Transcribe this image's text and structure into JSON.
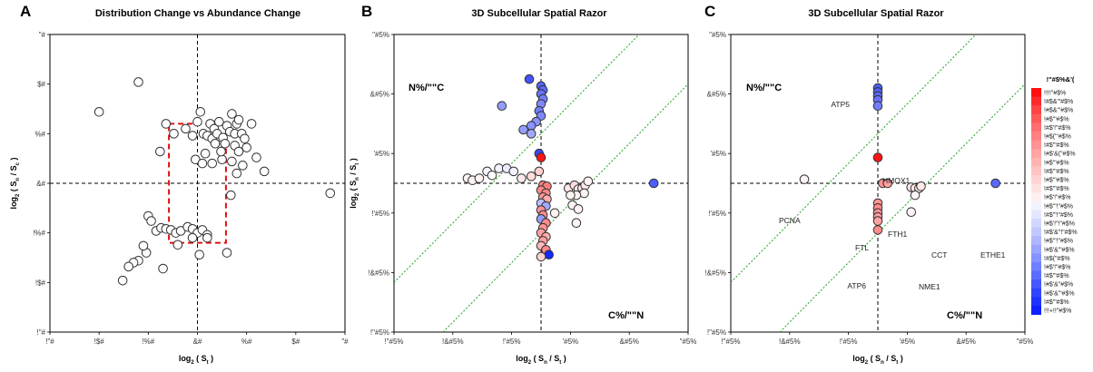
{
  "panels": [
    {
      "label": "A",
      "title": "Distribution Change vs  Abundance Change",
      "xlabel_main": "log",
      "xlabel_sub": "2",
      "xlabel_rest": " ( S",
      "xlabel_sub2": "t",
      "xlabel_end": " )",
      "ylabel_main": "log",
      "ylabel_sub": "2",
      "ylabel_rest": " ( S",
      "ylabel_sub2": "n",
      "ylabel_mid": " / S",
      "ylabel_sub3": "c",
      "ylabel_end": " )",
      "x_ticks": [
        "!\"#",
        "!$#",
        "!%#",
        "&#",
        "%#",
        "$#",
        "\"#"
      ],
      "y_ticks": [
        "\"#",
        "$#",
        "%#",
        "&#",
        "!%#",
        "!$#",
        "!\"#"
      ]
    },
    {
      "label": "B",
      "title": "3D Subcellular Spatial Razor",
      "xlabel_main": "log",
      "xlabel_sub": "2",
      "xlabel_rest": " ( S",
      "xlabel_sub2": "n",
      "xlabel_mid": " / S",
      "xlabel_sub3": "t",
      "xlabel_end": " )",
      "ylabel_main": "log",
      "ylabel_sub": "2",
      "ylabel_rest": " ( S",
      "ylabel_sub2": "n",
      "ylabel_mid": " / S",
      "ylabel_sub3": "t",
      "ylabel_end": " )",
      "x_ticks": [
        "!\"#5%",
        "!&#5%",
        "!'#5%",
        "'#5%",
        "&#5%",
        "\"#5%"
      ],
      "y_ticks": [
        "\"#5%",
        "&#5%",
        "'#5%",
        "!'#5%",
        "!&#5%",
        "!\"#5%"
      ],
      "corner_tl": "N%/\"\"C",
      "corner_br": "C%/\"\"N"
    },
    {
      "label": "C",
      "title": "3D Subcellular Spatial Razor",
      "xlabel_main": "log",
      "xlabel_sub": "2",
      "xlabel_rest": " ( S",
      "xlabel_sub2": "n",
      "xlabel_mid": " / S",
      "xlabel_sub3": "t",
      "xlabel_end": " )",
      "ylabel_main": "log",
      "ylabel_sub": "2",
      "ylabel_rest": " ( S",
      "ylabel_sub2": "n",
      "ylabel_mid": " / S",
      "ylabel_sub3": "t",
      "ylabel_end": " )",
      "x_ticks": [
        "!\"#5%",
        "!&#5%",
        "!'#5%",
        "'#5%",
        "&#5%",
        "\"#5%"
      ],
      "y_ticks": [
        "\"#5%",
        "&#5%",
        "'#5%",
        "!'#5%",
        "!&#5%",
        "!\"#5%"
      ],
      "corner_tl": "N%/\"\"C",
      "corner_br": "C%/\"\"N",
      "annotations": [
        "ATP5",
        "HMOX1",
        "PCNA",
        "FTH1",
        "FTL",
        "CCT",
        "ETHE1",
        "NME1",
        "ATP6"
      ]
    }
  ],
  "colorbar": {
    "title": "!\"#$%&'(",
    "labels": [
      "!!!!\"#$%",
      "!#$&'\"#$%",
      "!#$&'\"#$%",
      "!#$'\"#$%",
      "!#$'!\"#$%",
      "!#$('\"#$%",
      "!#$'\"#$%",
      "!#$'&(\"#$%",
      "!#$'\"#$%",
      "!#$'\"#$%",
      "!#$'\"#$%",
      "!#$'\"#$%",
      "!#$'!\"#$%",
      "!#$'\"!\"#$%",
      "!#$'\"!\"#$%",
      "!#$'!\"!\"#$%",
      "!#$'&\"!\"#$%",
      "!#$'\"!\"#$%",
      "!#$'&'\"#$%",
      "!#$(\"#$%",
      "!#$'!\"#$%",
      "!#$'\"#$%",
      "!#$'&\"#$%",
      "!#$'&'\"#$%",
      "!#$'\"#$%",
      "!!!+!!\"#$%"
    ],
    "colors": [
      "#ff1010",
      "#ff2a2a",
      "#ff4444",
      "#ff5a5a",
      "#ff6e6e",
      "#ff8080",
      "#ff9292",
      "#ffa3a3",
      "#ffb3b3",
      "#ffc3c3",
      "#ffd3d3",
      "#ffe2e2",
      "#fff0f0",
      "#f3f3ff",
      "#e3e6ff",
      "#d2d7ff",
      "#c1c8ff",
      "#aeb7ff",
      "#9aa5ff",
      "#8592ff",
      "#707fff",
      "#5a6bff",
      "#4557ff",
      "#3044ff",
      "#1e33ff",
      "#0d22ff"
    ]
  },
  "chart_data": [
    {
      "type": "scatter",
      "title": "Distribution Change vs  Abundance Change",
      "xlim": [
        -1.5,
        1.5
      ],
      "ylim": [
        -1.5,
        1.5
      ],
      "grid": false,
      "reference_lines": {
        "x": 0,
        "y": 0
      },
      "box": {
        "x": [
          -0.29,
          0.29
        ],
        "y": [
          -0.6,
          0.6
        ]
      },
      "points": [
        [
          -1.0,
          0.72
        ],
        [
          -0.6,
          1.02
        ],
        [
          -0.38,
          0.32
        ],
        [
          -0.32,
          0.6
        ],
        [
          -0.24,
          0.5
        ],
        [
          -0.12,
          0.55
        ],
        [
          -0.05,
          0.48
        ],
        [
          0.0,
          0.62
        ],
        [
          0.03,
          0.72
        ],
        [
          0.06,
          0.5
        ],
        [
          0.1,
          0.48
        ],
        [
          0.13,
          0.6
        ],
        [
          0.15,
          0.45
        ],
        [
          0.17,
          0.55
        ],
        [
          0.2,
          0.5
        ],
        [
          0.22,
          0.62
        ],
        [
          0.26,
          0.46
        ],
        [
          0.28,
          0.4
        ],
        [
          0.3,
          0.58
        ],
        [
          0.33,
          0.52
        ],
        [
          0.35,
          0.7
        ],
        [
          0.38,
          0.5
        ],
        [
          0.4,
          0.6
        ],
        [
          0.42,
          0.64
        ],
        [
          0.45,
          0.5
        ],
        [
          0.48,
          0.45
        ],
        [
          0.5,
          0.36
        ],
        [
          0.55,
          0.6
        ],
        [
          0.6,
          0.26
        ],
        [
          0.68,
          0.12
        ],
        [
          -0.02,
          0.24
        ],
        [
          0.05,
          0.2
        ],
        [
          0.15,
          0.2
        ],
        [
          0.25,
          0.24
        ],
        [
          0.35,
          0.22
        ],
        [
          0.4,
          0.1
        ],
        [
          0.46,
          0.18
        ],
        [
          0.34,
          -0.12
        ],
        [
          0.38,
          0.38
        ],
        [
          0.42,
          0.32
        ],
        [
          0.18,
          0.4
        ],
        [
          0.24,
          0.32
        ],
        [
          0.08,
          0.3
        ],
        [
          1.35,
          -0.1
        ],
        [
          -0.5,
          -0.33
        ],
        [
          -0.47,
          -0.38
        ],
        [
          -0.42,
          -0.48
        ],
        [
          -0.37,
          -0.45
        ],
        [
          -0.32,
          -0.46
        ],
        [
          -0.27,
          -0.47
        ],
        [
          -0.22,
          -0.5
        ],
        [
          -0.17,
          -0.48
        ],
        [
          -0.1,
          -0.44
        ],
        [
          -0.05,
          -0.46
        ],
        [
          0.0,
          -0.5
        ],
        [
          0.05,
          -0.47
        ],
        [
          0.1,
          -0.52
        ],
        [
          -0.52,
          -0.7
        ],
        [
          -0.55,
          -0.63
        ],
        [
          -0.6,
          -0.78
        ],
        [
          -0.65,
          -0.8
        ],
        [
          -0.7,
          -0.84
        ],
        [
          -0.76,
          -0.98
        ],
        [
          -0.35,
          -0.86
        ],
        [
          -0.2,
          -0.62
        ],
        [
          -0.05,
          -0.55
        ],
        [
          0.02,
          -0.72
        ],
        [
          0.1,
          -0.55
        ],
        [
          0.3,
          -0.7
        ]
      ]
    },
    {
      "type": "scatter",
      "title": "3D Subcellular Spatial Razor",
      "xlim": [
        -1.5,
        1.5
      ],
      "ylim": [
        -1.5,
        1.5
      ],
      "grid": false,
      "reference_lines": {
        "x": 0,
        "y": 0,
        "diagonals_offset": [
          0.5,
          -0.5
        ]
      },
      "points": [
        {
          "x": -0.12,
          "y": 1.05,
          "c": 0.8
        },
        {
          "x": 0.0,
          "y": 0.98,
          "c": 0.72
        },
        {
          "x": 0.02,
          "y": 0.94,
          "c": 0.7
        },
        {
          "x": 0.0,
          "y": 0.9,
          "c": 0.65
        },
        {
          "x": 0.02,
          "y": 0.85,
          "c": 0.6
        },
        {
          "x": 0.0,
          "y": 0.8,
          "c": 0.55
        },
        {
          "x": -0.4,
          "y": 0.78,
          "c": 0.45
        },
        {
          "x": -0.02,
          "y": 0.73,
          "c": 0.6
        },
        {
          "x": 0.0,
          "y": 0.68,
          "c": 0.55
        },
        {
          "x": -0.05,
          "y": 0.62,
          "c": 0.5
        },
        {
          "x": -0.1,
          "y": 0.58,
          "c": 0.5
        },
        {
          "x": -0.18,
          "y": 0.54,
          "c": 0.45
        },
        {
          "x": -0.1,
          "y": 0.5,
          "c": 0.4
        },
        {
          "x": -0.02,
          "y": 0.3,
          "c": 0.85
        },
        {
          "x": 0.0,
          "y": 0.26,
          "c": -1.0
        },
        {
          "x": -0.75,
          "y": 0.05,
          "c": -0.05
        },
        {
          "x": -0.7,
          "y": 0.03,
          "c": -0.05
        },
        {
          "x": -0.63,
          "y": 0.05,
          "c": -0.05
        },
        {
          "x": -0.55,
          "y": 0.12,
          "c": 0.05
        },
        {
          "x": -0.5,
          "y": 0.08,
          "c": 0.0
        },
        {
          "x": -0.43,
          "y": 0.15,
          "c": 0.05
        },
        {
          "x": -0.35,
          "y": 0.15,
          "c": 0.1
        },
        {
          "x": -0.28,
          "y": 0.12,
          "c": 0.05
        },
        {
          "x": -0.2,
          "y": 0.05,
          "c": -0.1
        },
        {
          "x": -0.1,
          "y": 0.07,
          "c": -0.15
        },
        {
          "x": -0.02,
          "y": 0.12,
          "c": -0.2
        },
        {
          "x": 0.02,
          "y": -0.02,
          "c": -0.55
        },
        {
          "x": 0.06,
          "y": -0.03,
          "c": -0.55
        },
        {
          "x": 0.0,
          "y": -0.07,
          "c": -0.5
        },
        {
          "x": 0.05,
          "y": -0.1,
          "c": -0.5
        },
        {
          "x": 0.02,
          "y": -0.14,
          "c": -0.45
        },
        {
          "x": 0.06,
          "y": -0.16,
          "c": -0.35
        },
        {
          "x": 0.0,
          "y": -0.2,
          "c": 0.3
        },
        {
          "x": 0.05,
          "y": -0.23,
          "c": 0.4
        },
        {
          "x": 0.0,
          "y": -0.27,
          "c": -0.45
        },
        {
          "x": 0.02,
          "y": -0.32,
          "c": -0.5
        },
        {
          "x": 0.0,
          "y": -0.36,
          "c": 0.45
        },
        {
          "x": 0.05,
          "y": -0.4,
          "c": -0.5
        },
        {
          "x": 0.02,
          "y": -0.45,
          "c": -0.45
        },
        {
          "x": 0.0,
          "y": -0.5,
          "c": -0.4
        },
        {
          "x": 0.05,
          "y": -0.54,
          "c": -0.35
        },
        {
          "x": 0.02,
          "y": -0.58,
          "c": -0.4
        },
        {
          "x": 0.0,
          "y": -0.63,
          "c": -0.3
        },
        {
          "x": 0.05,
          "y": -0.67,
          "c": -0.5
        },
        {
          "x": 0.08,
          "y": -0.72,
          "c": 1.0
        },
        {
          "x": 0.0,
          "y": -0.74,
          "c": -0.2
        },
        {
          "x": 0.14,
          "y": -0.3,
          "c": -0.05
        },
        {
          "x": 0.28,
          "y": -0.05,
          "c": -0.1
        },
        {
          "x": 0.34,
          "y": -0.02,
          "c": -0.15
        },
        {
          "x": 0.38,
          "y": -0.06,
          "c": -0.1
        },
        {
          "x": 0.42,
          "y": -0.05,
          "c": -0.1
        },
        {
          "x": 0.45,
          "y": -0.02,
          "c": -0.1
        },
        {
          "x": 0.48,
          "y": 0.02,
          "c": -0.05
        },
        {
          "x": 0.44,
          "y": -0.1,
          "c": -0.05
        },
        {
          "x": 0.36,
          "y": -0.12,
          "c": -0.05
        },
        {
          "x": 0.3,
          "y": -0.12,
          "c": -0.05
        },
        {
          "x": 0.32,
          "y": -0.22,
          "c": -0.05
        },
        {
          "x": 0.38,
          "y": -0.26,
          "c": -0.05
        },
        {
          "x": 0.36,
          "y": -0.4,
          "c": -0.05
        },
        {
          "x": 1.15,
          "y": 0.0,
          "c": 0.75
        }
      ]
    },
    {
      "type": "scatter",
      "title": "3D Subcellular Spatial Razor",
      "xlim": [
        -1.5,
        1.5
      ],
      "ylim": [
        -1.5,
        1.5
      ],
      "grid": false,
      "reference_lines": {
        "x": 0,
        "y": 0,
        "diagonals_offset": [
          0.5,
          -0.5
        ]
      },
      "points": [
        {
          "x": 0.0,
          "y": 0.96,
          "c": 0.75
        },
        {
          "x": 0.0,
          "y": 0.92,
          "c": 0.72
        },
        {
          "x": 0.0,
          "y": 0.88,
          "c": 0.7
        },
        {
          "x": 0.0,
          "y": 0.84,
          "c": 0.65
        },
        {
          "x": 0.0,
          "y": 0.78,
          "c": 0.6
        },
        {
          "x": 0.0,
          "y": 0.26,
          "c": -1.0
        },
        {
          "x": -0.75,
          "y": 0.04,
          "c": -0.05
        },
        {
          "x": 0.05,
          "y": 0.0,
          "c": -0.45
        },
        {
          "x": 0.1,
          "y": 0.0,
          "c": -0.4
        },
        {
          "x": 0.34,
          "y": -0.04,
          "c": -0.1
        },
        {
          "x": 0.38,
          "y": -0.05,
          "c": -0.1
        },
        {
          "x": 0.42,
          "y": -0.05,
          "c": -0.1
        },
        {
          "x": 0.44,
          "y": -0.03,
          "c": -0.1
        },
        {
          "x": 0.38,
          "y": -0.12,
          "c": -0.05
        },
        {
          "x": 0.34,
          "y": -0.29,
          "c": -0.05
        },
        {
          "x": 1.2,
          "y": 0.0,
          "c": 0.7
        },
        {
          "x": 0.0,
          "y": -0.2,
          "c": -0.45
        },
        {
          "x": 0.0,
          "y": -0.25,
          "c": -0.5
        },
        {
          "x": 0.0,
          "y": -0.3,
          "c": -0.45
        },
        {
          "x": 0.0,
          "y": -0.34,
          "c": -0.4
        },
        {
          "x": 0.0,
          "y": -0.38,
          "c": -0.4
        },
        {
          "x": 0.0,
          "y": -0.47,
          "c": -0.5
        }
      ],
      "labels": [
        "ATP5",
        "HMOX1",
        "PCNA",
        "FTH1",
        "FTL",
        "CCT",
        "ETHE1",
        "NME1",
        "ATP6"
      ]
    }
  ]
}
